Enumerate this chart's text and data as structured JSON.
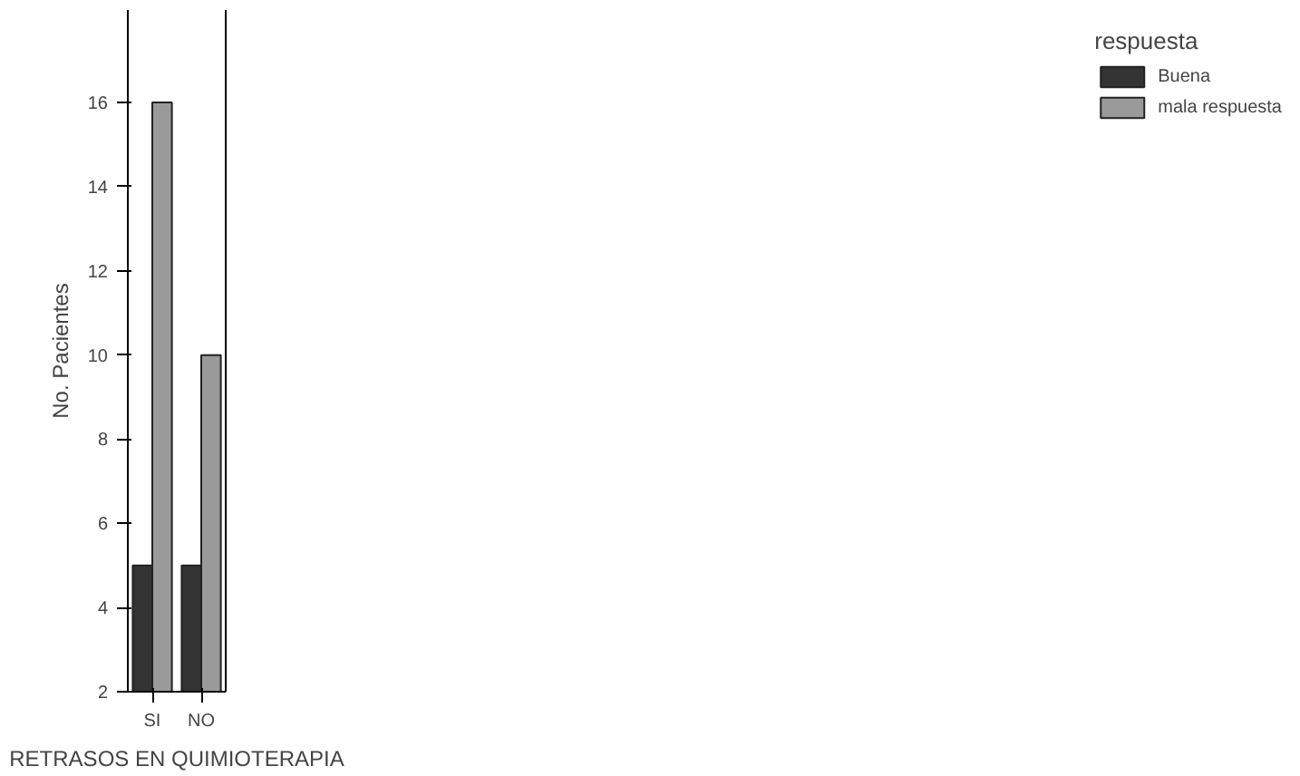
{
  "chart_data": {
    "type": "bar",
    "xlabel": "RETRASOS EN QUIMIOTERAPIA",
    "ylabel": "No. Pacientes",
    "legend_title": "respuesta",
    "categories": [
      "SI",
      "NO"
    ],
    "series": [
      {
        "name": "Buena",
        "color": "#333333",
        "values": [
          5,
          5
        ]
      },
      {
        "name": "mala respuesta",
        "color": "#9a9a9a",
        "values": [
          16,
          10
        ]
      }
    ],
    "ylim": [
      2,
      18.2
    ],
    "yticks": [
      2,
      4,
      6,
      8,
      10,
      12,
      14,
      16
    ],
    "grid": false,
    "legend": "right"
  }
}
